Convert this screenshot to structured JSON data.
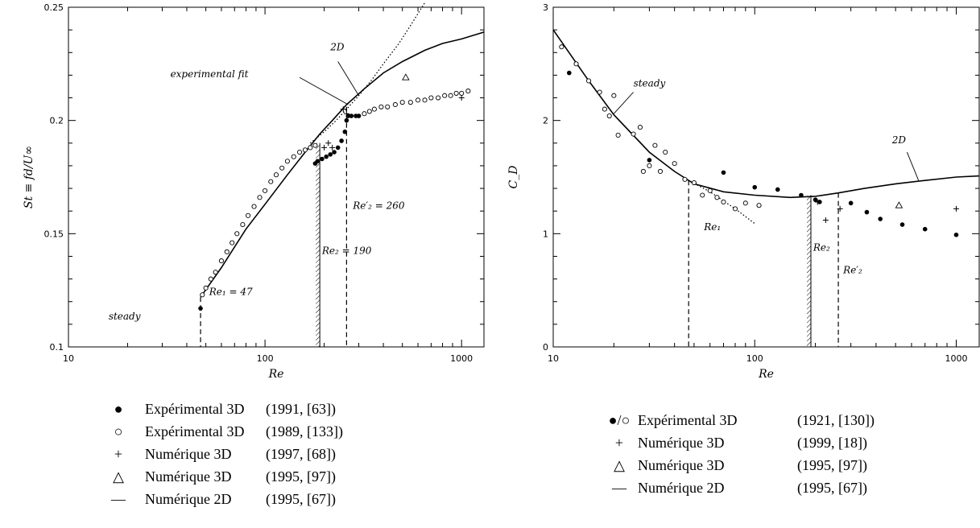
{
  "chart_data": [
    {
      "type": "line",
      "xlabel": "Re",
      "ylabel": "St ≡ fd/U∞",
      "xscale": "log",
      "xlim": [
        10,
        1300
      ],
      "ylim": [
        0.1,
        0.25
      ],
      "x_ticks": [
        10,
        100,
        1000
      ],
      "y_ticks": [
        0.1,
        0.15,
        0.2,
        0.25
      ],
      "x_tick_labels": [
        "10",
        "100",
        "1000"
      ],
      "y_tick_labels": [
        "0.1",
        "0.15",
        "0.2",
        "0.25"
      ],
      "series": [
        {
          "name": "2D",
          "style": "solid",
          "x": [
            47,
            60,
            80,
            100,
            130,
            160,
            190,
            220,
            260,
            320,
            400,
            500,
            650,
            800,
            1000,
            1300
          ],
          "y": [
            0.122,
            0.135,
            0.152,
            0.163,
            0.176,
            0.186,
            0.194,
            0.2,
            0.207,
            0.214,
            0.221,
            0.226,
            0.231,
            0.234,
            0.236,
            0.239
          ]
        },
        {
          "name": "experimental fit",
          "style": "dotted",
          "x": [
            170,
            200,
            230,
            260,
            300,
            350,
            400,
            480,
            560,
            650
          ],
          "y": [
            0.19,
            0.195,
            0.2,
            0.205,
            0.211,
            0.218,
            0.225,
            0.234,
            0.243,
            0.252
          ]
        },
        {
          "name": "Expérimental 3D (1991, [63])",
          "marker": "filled-circle",
          "x": [
            47,
            180,
            185,
            195,
            205,
            215,
            225,
            235,
            245,
            255,
            260,
            265,
            275,
            290,
            300
          ],
          "y": [
            0.117,
            0.181,
            0.182,
            0.183,
            0.184,
            0.185,
            0.186,
            0.188,
            0.191,
            0.195,
            0.2,
            0.202,
            0.202,
            0.202,
            0.202
          ]
        },
        {
          "name": "Expérimental 3D (1989, [133])",
          "marker": "open-circle",
          "x": [
            48,
            50,
            53,
            56,
            60,
            64,
            68,
            72,
            77,
            82,
            88,
            94,
            100,
            107,
            114,
            122,
            130,
            140,
            150,
            160,
            170,
            180,
            320,
            340,
            360,
            390,
            420,
            460,
            500,
            550,
            600,
            650,
            700,
            760,
            820,
            880,
            940,
            1000,
            1080
          ],
          "y": [
            0.123,
            0.126,
            0.13,
            0.133,
            0.138,
            0.142,
            0.146,
            0.15,
            0.154,
            0.158,
            0.162,
            0.166,
            0.169,
            0.173,
            0.176,
            0.179,
            0.182,
            0.184,
            0.186,
            0.187,
            0.188,
            0.189,
            0.203,
            0.204,
            0.205,
            0.206,
            0.206,
            0.207,
            0.208,
            0.208,
            0.209,
            0.209,
            0.21,
            0.21,
            0.211,
            0.211,
            0.212,
            0.212,
            0.213
          ]
        },
        {
          "name": "Numérique 3D (1997, [68])",
          "marker": "plus",
          "x": [
            200,
            210,
            220,
            250,
            260,
            1000
          ],
          "y": [
            0.188,
            0.19,
            0.188,
            0.205,
            0.203,
            0.21
          ]
        },
        {
          "name": "Numérique 3D (1995, [97])",
          "marker": "open-triangle",
          "x": [
            520
          ],
          "y": [
            0.219
          ]
        }
      ],
      "vlines": [
        47,
        190,
        260
      ],
      "annotations": [
        "2D",
        "experimental fit",
        "Re₁ = 47",
        "Re₂ = 190",
        "Re′₂ = 260",
        "steady"
      ]
    },
    {
      "type": "line",
      "xlabel": "Re",
      "ylabel": "C_D",
      "xscale": "log",
      "xlim": [
        10,
        1300
      ],
      "ylim": [
        0,
        3
      ],
      "x_ticks": [
        10,
        100,
        1000
      ],
      "y_ticks": [
        0,
        1,
        2,
        3
      ],
      "x_tick_labels": [
        "10",
        "100",
        "1000"
      ],
      "y_tick_labels": [
        "0",
        "1",
        "2",
        "3"
      ],
      "series": [
        {
          "name": "steady",
          "style": "dotted",
          "x": [
            47,
            60,
            80,
            100
          ],
          "y": [
            1.47,
            1.37,
            1.22,
            1.09
          ]
        },
        {
          "name": "2D",
          "style": "solid",
          "x": [
            10,
            15,
            20,
            30,
            40,
            50,
            70,
            100,
            150,
            200,
            260,
            350,
            500,
            700,
            1000,
            1300
          ],
          "y": [
            2.8,
            2.35,
            2.05,
            1.72,
            1.55,
            1.44,
            1.37,
            1.34,
            1.32,
            1.33,
            1.36,
            1.4,
            1.44,
            1.47,
            1.5,
            1.51
          ]
        },
        {
          "name": "Expérimental 3D (1921, [130]) filled",
          "marker": "filled-circle",
          "x": [
            12,
            30,
            70,
            100,
            130,
            170,
            200,
            210,
            300,
            360,
            420,
            540,
            700,
            1000
          ],
          "y": [
            2.42,
            1.65,
            1.54,
            1.41,
            1.39,
            1.34,
            1.3,
            1.28,
            1.27,
            1.19,
            1.13,
            1.08,
            1.04,
            0.99
          ]
        },
        {
          "name": "Expérimental 3D (1921, [130]) open",
          "marker": "open-circle",
          "x": [
            11,
            13,
            15,
            17,
            18,
            19,
            20,
            21,
            25,
            27,
            28,
            30,
            32,
            34,
            36,
            40,
            45,
            50,
            55,
            60,
            65,
            70,
            80,
            90,
            105
          ],
          "y": [
            2.65,
            2.5,
            2.35,
            2.25,
            2.1,
            2.04,
            2.22,
            1.87,
            1.88,
            1.94,
            1.55,
            1.6,
            1.78,
            1.55,
            1.72,
            1.62,
            1.48,
            1.45,
            1.34,
            1.38,
            1.32,
            1.28,
            1.22,
            1.27,
            1.25
          ]
        },
        {
          "name": "Numérique 3D (1999, [18])",
          "marker": "plus",
          "x": [
            205,
            225,
            265,
            1000
          ],
          "y": [
            1.28,
            1.12,
            1.22,
            1.22
          ]
        },
        {
          "name": "Numérique 3D (1995, [97])",
          "marker": "open-triangle",
          "x": [
            520
          ],
          "y": [
            1.25
          ]
        }
      ],
      "vlines": [
        47,
        190,
        260
      ],
      "annotations": [
        "steady",
        "2D",
        "Re₁",
        "Re₂",
        "Re′₂"
      ]
    }
  ],
  "legend_left": [
    {
      "symbol": "●",
      "label": "Expérimental 3D",
      "ref": "(1991, [63])"
    },
    {
      "symbol": "○",
      "label": "Expérimental 3D",
      "ref": "(1989, [133])"
    },
    {
      "symbol": "+",
      "label": "Numérique 3D",
      "ref": "(1997, [68])"
    },
    {
      "symbol": "△",
      "label": "Numérique 3D",
      "ref": "(1995, [97])"
    },
    {
      "symbol": "—",
      "label": "Numérique 2D",
      "ref": "(1995, [67])"
    }
  ],
  "legend_right": [
    {
      "symbol": "●/○",
      "label": "Expérimental 3D",
      "ref": "(1921, [130])"
    },
    {
      "symbol": "+",
      "label": "Numérique 3D",
      "ref": "(1999, [18])"
    },
    {
      "symbol": "△",
      "label": "Numérique 3D",
      "ref": "(1995, [97])"
    },
    {
      "symbol": "—",
      "label": "Numérique 2D",
      "ref": "(1995, [67])"
    }
  ]
}
